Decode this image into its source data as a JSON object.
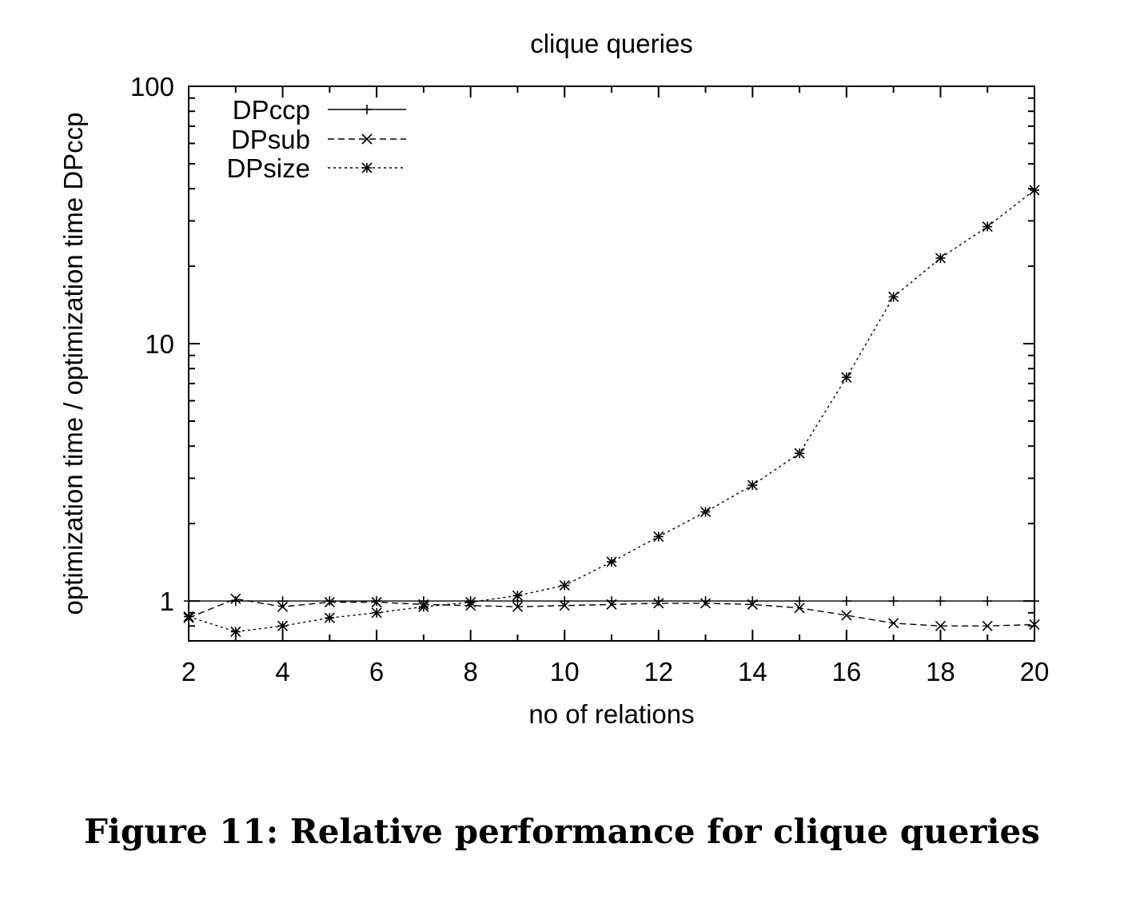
{
  "figure": {
    "caption": "Figure 11: Relative performance for clique queries"
  },
  "chart_data": {
    "type": "line",
    "title": "clique queries",
    "xlabel": "no of relations",
    "ylabel": "optimization time / optimization time DPccp",
    "xlim": [
      2,
      20
    ],
    "ylim": [
      0.7,
      100
    ],
    "yscale": "log",
    "xticks": [
      2,
      4,
      6,
      8,
      10,
      12,
      14,
      16,
      18,
      20
    ],
    "yticks": [
      1,
      10,
      100
    ],
    "ytick_labels": [
      "1",
      "10",
      "100"
    ],
    "legend_position": "top-left",
    "grid": false,
    "x": [
      2,
      3,
      4,
      5,
      6,
      7,
      8,
      9,
      10,
      11,
      12,
      13,
      14,
      15,
      16,
      17,
      18,
      19,
      20
    ],
    "series": [
      {
        "name": "DPccp",
        "marker": "plus",
        "line_style": "solid",
        "values": [
          1,
          1,
          1,
          1,
          1,
          1,
          1,
          1,
          1,
          1,
          1,
          1,
          1,
          1,
          1,
          1,
          1,
          1,
          1
        ]
      },
      {
        "name": "DPsub",
        "marker": "cross",
        "line_style": "dashed",
        "values": [
          0.86,
          1.02,
          0.95,
          0.99,
          0.99,
          0.97,
          0.96,
          0.95,
          0.96,
          0.97,
          0.98,
          0.98,
          0.97,
          0.94,
          0.88,
          0.82,
          0.8,
          0.8,
          0.81
        ]
      },
      {
        "name": "DPsize",
        "marker": "star",
        "line_style": "dotted",
        "values": [
          0.87,
          0.76,
          0.8,
          0.86,
          0.9,
          0.95,
          0.99,
          1.05,
          1.15,
          1.42,
          1.78,
          2.22,
          2.82,
          3.75,
          7.4,
          15.2,
          21.5,
          28.5,
          39.5
        ]
      }
    ]
  }
}
